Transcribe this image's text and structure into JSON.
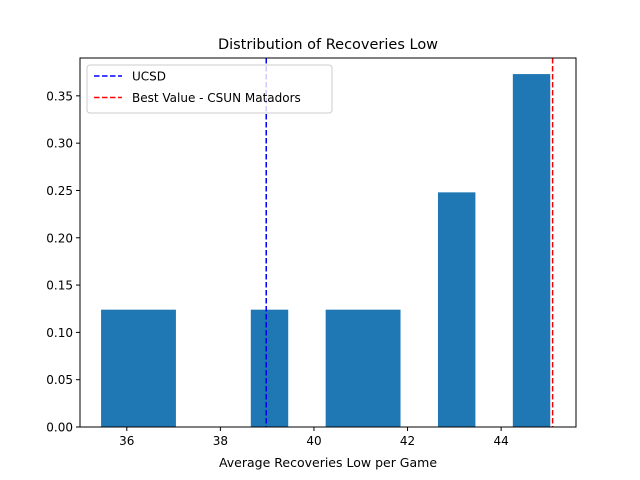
{
  "chart_data": {
    "type": "bar",
    "title": "Distribution of Recoveries Low",
    "xlabel": "Average Recoveries Low per Game",
    "ylabel": "",
    "xlim": [
      35.0,
      45.6
    ],
    "ylim": [
      0,
      0.39
    ],
    "x_ticks": [
      36,
      38,
      40,
      42,
      44
    ],
    "y_ticks": [
      0.0,
      0.05,
      0.1,
      0.15,
      0.2,
      0.25,
      0.3,
      0.35
    ],
    "x_tick_labels": [
      "36",
      "38",
      "40",
      "42",
      "44"
    ],
    "y_tick_labels": [
      "0.00",
      "0.05",
      "0.10",
      "0.15",
      "0.20",
      "0.25",
      "0.30",
      "0.35"
    ],
    "bars": [
      {
        "x0": 35.45,
        "x1": 37.05,
        "value": 0.124
      },
      {
        "x0": 38.65,
        "x1": 39.45,
        "value": 0.124
      },
      {
        "x0": 40.25,
        "x1": 41.85,
        "value": 0.124
      },
      {
        "x0": 42.65,
        "x1": 43.45,
        "value": 0.248
      },
      {
        "x0": 44.25,
        "x1": 45.05,
        "value": 0.373
      }
    ],
    "bar_color": "#1f77b4",
    "reference_lines": [
      {
        "label": "UCSD",
        "x": 38.98,
        "color": "#0000ff"
      },
      {
        "label": "Best Value - CSUN Matadors",
        "x": 45.1,
        "color": "#ff0000"
      }
    ],
    "legend_position": "top-left",
    "grid": false
  }
}
